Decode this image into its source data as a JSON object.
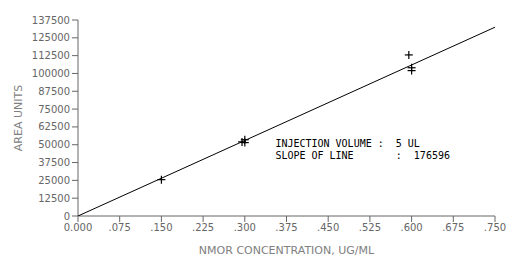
{
  "chart_data": {
    "type": "scatter",
    "title": "",
    "xlabel": "NMOR CONCENTRATION, UG/ML",
    "ylabel": "AREA UNITS",
    "xlim": [
      0.0,
      0.75
    ],
    "ylim": [
      0,
      137500
    ],
    "xticks": [
      {
        "value": 0.0,
        "label": "0.000"
      },
      {
        "value": 0.075,
        "label": ".075"
      },
      {
        "value": 0.15,
        "label": ".150"
      },
      {
        "value": 0.225,
        "label": ".225"
      },
      {
        "value": 0.3,
        "label": ".300"
      },
      {
        "value": 0.375,
        "label": ".375"
      },
      {
        "value": 0.45,
        "label": ".450"
      },
      {
        "value": 0.525,
        "label": ".525"
      },
      {
        "value": 0.6,
        "label": ".600"
      },
      {
        "value": 0.675,
        "label": ".675"
      },
      {
        "value": 0.75,
        "label": ".750"
      }
    ],
    "yticks": [
      0,
      12500,
      25000,
      37500,
      50000,
      62500,
      75000,
      87500,
      100000,
      112500,
      125000,
      137500
    ],
    "grid": false,
    "series": [
      {
        "type": "line",
        "color": "#000000",
        "x": [
          0.0,
          0.75
        ],
        "values": [
          0,
          132447
        ]
      },
      {
        "type": "scatter",
        "marker": "plus",
        "color": "#000000",
        "x": [
          0.15,
          0.295,
          0.3,
          0.3,
          0.595,
          0.6,
          0.6
        ],
        "values": [
          25500,
          52000,
          51500,
          53500,
          113000,
          102000,
          104000
        ]
      }
    ],
    "annotations": [
      {
        "text": "INJECTION VOLUME :  5 UL\nSLOPE OF LINE       :  176596",
        "x": 0.355,
        "y": 38000
      }
    ]
  }
}
